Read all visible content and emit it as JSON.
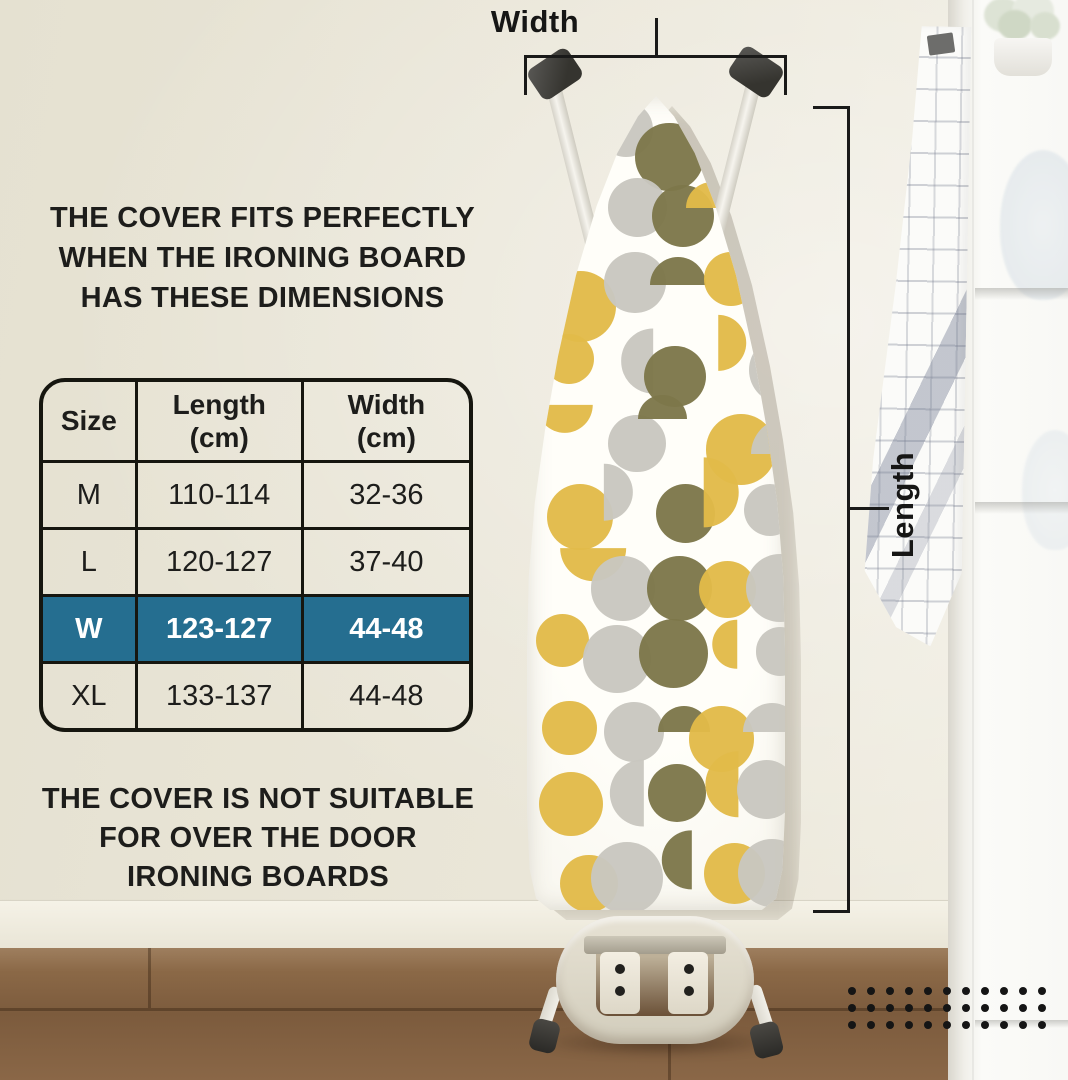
{
  "headline": {
    "lines": [
      "THE COVER FITS PERFECTLY",
      "WHEN THE IRONING BOARD",
      "HAS THESE DIMENSIONS"
    ]
  },
  "footnote": {
    "lines": [
      "THE COVER IS NOT SUITABLE",
      "FOR OVER THE DOOR",
      "IRONING BOARDS"
    ]
  },
  "size_table": {
    "columns": [
      {
        "lines": [
          "Size"
        ]
      },
      {
        "lines": [
          "Length",
          "(cm)"
        ]
      },
      {
        "lines": [
          "Width",
          "(cm)"
        ]
      }
    ],
    "rows": [
      {
        "size": "M",
        "length": "110-114",
        "width": "32-36",
        "highlighted": false
      },
      {
        "size": "L",
        "length": "120-127",
        "width": "37-40",
        "highlighted": false
      },
      {
        "size": "W",
        "length": "123-127",
        "width": "44-48",
        "highlighted": true
      },
      {
        "size": "XL",
        "length": "133-137",
        "width": "44-48",
        "highlighted": false
      }
    ],
    "highlight_color": "#256e90",
    "border_color": "#16160f",
    "text_color": "#1d1d1b"
  },
  "dimensions": {
    "width_label": "Width",
    "length_label": "Length",
    "line_color": "#1a1a19"
  },
  "board": {
    "cover_color": "#fdfcf6",
    "pattern_colors": {
      "yellow": "#e2ba49",
      "gray": "#c9c7bf",
      "olive": "#7d774a"
    }
  },
  "scene": {
    "wall_color": "#eae6d8",
    "floor_color": "#86644a",
    "shelf_color": "#f7f7f4",
    "accent_dot_color": "#151515",
    "accent_dot_rows": 3,
    "accent_dot_cols": 11
  }
}
